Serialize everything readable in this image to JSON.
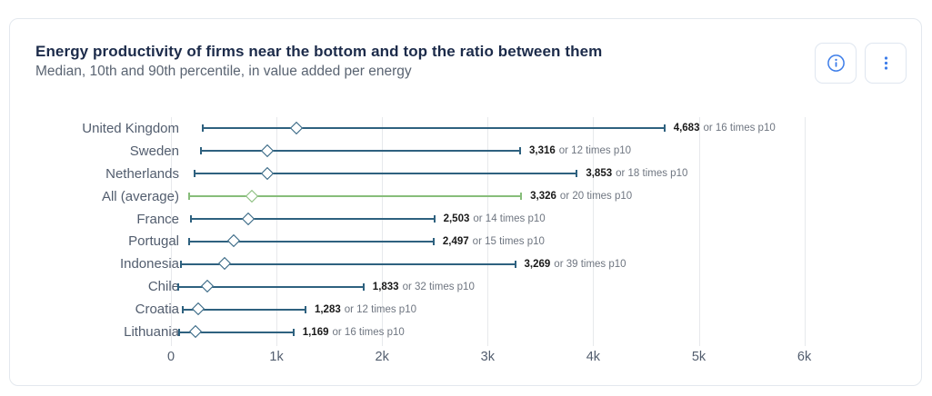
{
  "card": {
    "title": "Energy productivity of firms near the bottom and top the ratio between them",
    "subtitle": "Median, 10th and 90th percentile, in value added per energy",
    "buttons": [
      {
        "name": "info-button",
        "icon": "info-icon"
      },
      {
        "name": "menu-button",
        "icon": "kebab-icon"
      }
    ]
  },
  "colors": {
    "line": "#2e617f",
    "highlight": "#87bd7a",
    "grid": "#e7e9ec",
    "axis-text": "#525d6e",
    "title-text": "#1c2b4a",
    "subtitle-text": "#5a6472",
    "value-text": "#191919",
    "value-suffix": "#6f7681",
    "icon": "#3d7de9",
    "button-border": "#dfe6f0",
    "card-border": "#e3e8ee"
  },
  "chart_data": {
    "type": "range-dot",
    "orientation": "horizontal",
    "xlabel": "",
    "ylabel": "",
    "xlim": [
      0,
      6700
    ],
    "grid": "vertical-only",
    "legend": "none",
    "marker": "open-diamond-median, capped line from p10 to p90",
    "xtick_values": [
      0,
      1000,
      2000,
      3000,
      4000,
      5000,
      6000
    ],
    "xtick_labels": [
      "0",
      "1k",
      "2k",
      "3k",
      "4k",
      "5k",
      "6k"
    ],
    "highlight_category": "All (average)",
    "rows": [
      {
        "category": "United Kingdom",
        "p10": 293,
        "median": 1190,
        "p90": 4683,
        "value_label": "4,683",
        "suffix": "or 16 times p10",
        "highlight": false
      },
      {
        "category": "Sweden",
        "p10": 276,
        "median": 915,
        "p90": 3316,
        "value_label": "3,316",
        "suffix": "or 12 times p10",
        "highlight": false
      },
      {
        "category": "Netherlands",
        "p10": 214,
        "median": 915,
        "p90": 3853,
        "value_label": "3,853",
        "suffix": "or 18 times p10",
        "highlight": false
      },
      {
        "category": "All (average)",
        "p10": 166,
        "median": 770,
        "p90": 3326,
        "value_label": "3,326",
        "suffix": "or 20 times p10",
        "highlight": true
      },
      {
        "category": "France",
        "p10": 179,
        "median": 740,
        "p90": 2503,
        "value_label": "2,503",
        "suffix": "or 14 times p10",
        "highlight": false
      },
      {
        "category": "Portugal",
        "p10": 166,
        "median": 595,
        "p90": 2497,
        "value_label": "2,497",
        "suffix": "or 15 times p10",
        "highlight": false
      },
      {
        "category": "Indonesia",
        "p10": 84,
        "median": 515,
        "p90": 3269,
        "value_label": "3,269",
        "suffix": "or 39 times p10",
        "highlight": false
      },
      {
        "category": "Chile",
        "p10": 57,
        "median": 345,
        "p90": 1833,
        "value_label": "1,833",
        "suffix": "or 32 times p10",
        "highlight": false
      },
      {
        "category": "Croatia",
        "p10": 107,
        "median": 265,
        "p90": 1283,
        "value_label": "1,283",
        "suffix": "or 12 times p10",
        "highlight": false
      },
      {
        "category": "Lithuania",
        "p10": 73,
        "median": 235,
        "p90": 1169,
        "value_label": "1,169",
        "suffix": "or 16 times p10",
        "highlight": false
      }
    ]
  }
}
